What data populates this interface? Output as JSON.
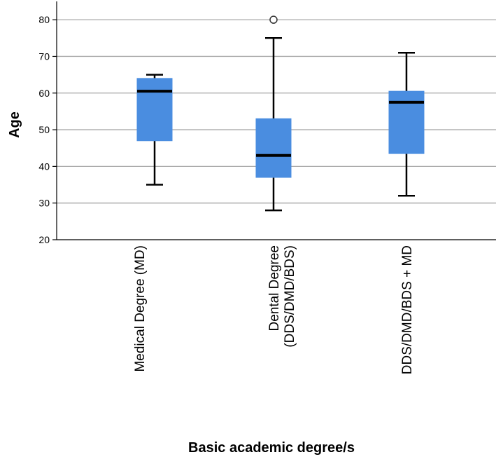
{
  "chart_data": {
    "type": "box",
    "xlabel": "Basic academic degree/s",
    "ylabel": "Age",
    "ylim": [
      20,
      85
    ],
    "yticks": [
      20,
      30,
      40,
      50,
      60,
      70,
      80
    ],
    "grid": true,
    "box_color": "#4A8DE0",
    "categories": [
      {
        "label_lines": [
          "Medical Degree (MD)"
        ],
        "min": 35,
        "q1": 47,
        "median": 60.5,
        "q3": 64,
        "max": 65,
        "outliers": []
      },
      {
        "label_lines": [
          "Dental Degree",
          "(DDS/DMD/BDS)"
        ],
        "min": 28,
        "q1": 37,
        "median": 43,
        "q3": 53,
        "max": 75,
        "outliers": [
          80
        ]
      },
      {
        "label_lines": [
          "DDS/DMD/BDS + MD"
        ],
        "min": 32,
        "q1": 43.5,
        "median": 57.5,
        "q3": 60.5,
        "max": 71,
        "outliers": []
      }
    ]
  }
}
